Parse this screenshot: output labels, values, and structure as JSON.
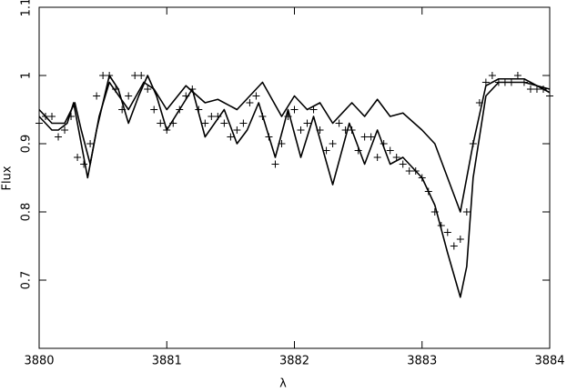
{
  "chart_data": {
    "type": "line",
    "x_label": "λ",
    "y_label": "Flux",
    "xlim": [
      3880,
      3884
    ],
    "xticks": [
      3880,
      3881,
      3882,
      3883,
      3884
    ],
    "ylim": [
      0.6,
      1.1
    ],
    "yticks": [
      0.7,
      0.8,
      0.9,
      1,
      1.1
    ],
    "grid": false,
    "series": [
      {
        "color": "#000000",
        "marker": "line",
        "x": [
          3880,
          3880.1,
          3880.15,
          3880.22,
          3880.27,
          3880.32,
          3880.38,
          3880.45,
          3880.55,
          3880.62,
          3880.7,
          3880.78,
          3880.85,
          3880.92,
          3881.0,
          3881.1,
          3881.2,
          3881.3,
          3881.45,
          3881.55,
          3881.63,
          3881.72,
          3881.85,
          3881.95,
          3882.05,
          3882.15,
          3882.3,
          3882.43,
          3882.55,
          3882.65,
          3882.75,
          3882.85,
          3883.0,
          3883.1,
          3883.2,
          3883.3,
          3883.35,
          3883.4,
          3883.5,
          3883.6,
          3883.8,
          3884
        ],
        "values": [
          0.94,
          0.92,
          0.92,
          0.93,
          0.96,
          0.91,
          0.85,
          0.92,
          1.0,
          0.98,
          0.93,
          0.97,
          1.0,
          0.97,
          0.92,
          0.95,
          0.98,
          0.91,
          0.95,
          0.9,
          0.92,
          0.96,
          0.88,
          0.95,
          0.88,
          0.94,
          0.84,
          0.93,
          0.87,
          0.92,
          0.87,
          0.88,
          0.85,
          0.81,
          0.74,
          0.675,
          0.72,
          0.85,
          0.97,
          0.99,
          0.99,
          0.98
        ]
      },
      {
        "color": "#000000",
        "marker": "line",
        "x": [
          3880,
          3880.1,
          3880.2,
          3880.28,
          3880.33,
          3880.4,
          3880.47,
          3880.55,
          3880.7,
          3880.82,
          3880.9,
          3881.0,
          3881.15,
          3881.3,
          3881.4,
          3881.55,
          3881.75,
          3881.9,
          3882.0,
          3882.1,
          3882.2,
          3882.3,
          3882.45,
          3882.55,
          3882.65,
          3882.75,
          3882.85,
          3883.0,
          3883.1,
          3883.2,
          3883.3,
          3883.4,
          3883.5,
          3883.6,
          3883.8,
          3884
        ],
        "values": [
          0.95,
          0.93,
          0.93,
          0.96,
          0.92,
          0.87,
          0.94,
          0.99,
          0.95,
          0.99,
          0.98,
          0.95,
          0.985,
          0.96,
          0.965,
          0.95,
          0.99,
          0.94,
          0.97,
          0.95,
          0.96,
          0.93,
          0.96,
          0.94,
          0.965,
          0.94,
          0.945,
          0.92,
          0.9,
          0.85,
          0.8,
          0.9,
          0.985,
          0.995,
          0.995,
          0.975
        ]
      },
      {
        "color": "#000000",
        "marker": "+",
        "x": [
          3880,
          3880.05,
          3880.1,
          3880.15,
          3880.2,
          3880.25,
          3880.3,
          3880.35,
          3880.4,
          3880.45,
          3880.5,
          3880.55,
          3880.6,
          3880.65,
          3880.7,
          3880.75,
          3880.8,
          3880.85,
          3880.9,
          3880.95,
          3881,
          3881.05,
          3881.1,
          3881.15,
          3881.2,
          3881.25,
          3881.3,
          3881.35,
          3881.4,
          3881.45,
          3881.5,
          3881.55,
          3881.6,
          3881.65,
          3881.7,
          3881.75,
          3881.8,
          3881.85,
          3881.9,
          3881.95,
          3882,
          3882.05,
          3882.1,
          3882.15,
          3882.2,
          3882.25,
          3882.3,
          3882.35,
          3882.4,
          3882.45,
          3882.5,
          3882.55,
          3882.6,
          3882.65,
          3882.7,
          3882.75,
          3882.8,
          3882.85,
          3882.9,
          3882.95,
          3883,
          3883.05,
          3883.1,
          3883.15,
          3883.2,
          3883.25,
          3883.3,
          3883.35,
          3883.4,
          3883.45,
          3883.5,
          3883.55,
          3883.6,
          3883.65,
          3883.7,
          3883.75,
          3883.8,
          3883.85,
          3883.9,
          3883.95,
          3884
        ],
        "values": [
          0.93,
          0.94,
          0.94,
          0.91,
          0.92,
          0.94,
          0.88,
          0.87,
          0.9,
          0.97,
          1.0,
          1.0,
          0.98,
          0.95,
          0.97,
          1.0,
          1.0,
          0.98,
          0.95,
          0.93,
          0.92,
          0.93,
          0.95,
          0.97,
          0.98,
          0.95,
          0.93,
          0.94,
          0.94,
          0.93,
          0.91,
          0.92,
          0.93,
          0.96,
          0.97,
          0.94,
          0.91,
          0.87,
          0.9,
          0.94,
          0.95,
          0.92,
          0.93,
          0.95,
          0.92,
          0.89,
          0.9,
          0.93,
          0.92,
          0.92,
          0.89,
          0.91,
          0.91,
          0.88,
          0.9,
          0.89,
          0.88,
          0.87,
          0.86,
          0.86,
          0.85,
          0.83,
          0.8,
          0.78,
          0.77,
          0.75,
          0.76,
          0.8,
          0.9,
          0.96,
          0.99,
          1.0,
          0.99,
          0.99,
          0.99,
          1.0,
          0.99,
          0.98,
          0.98,
          0.98,
          0.97
        ]
      }
    ]
  }
}
